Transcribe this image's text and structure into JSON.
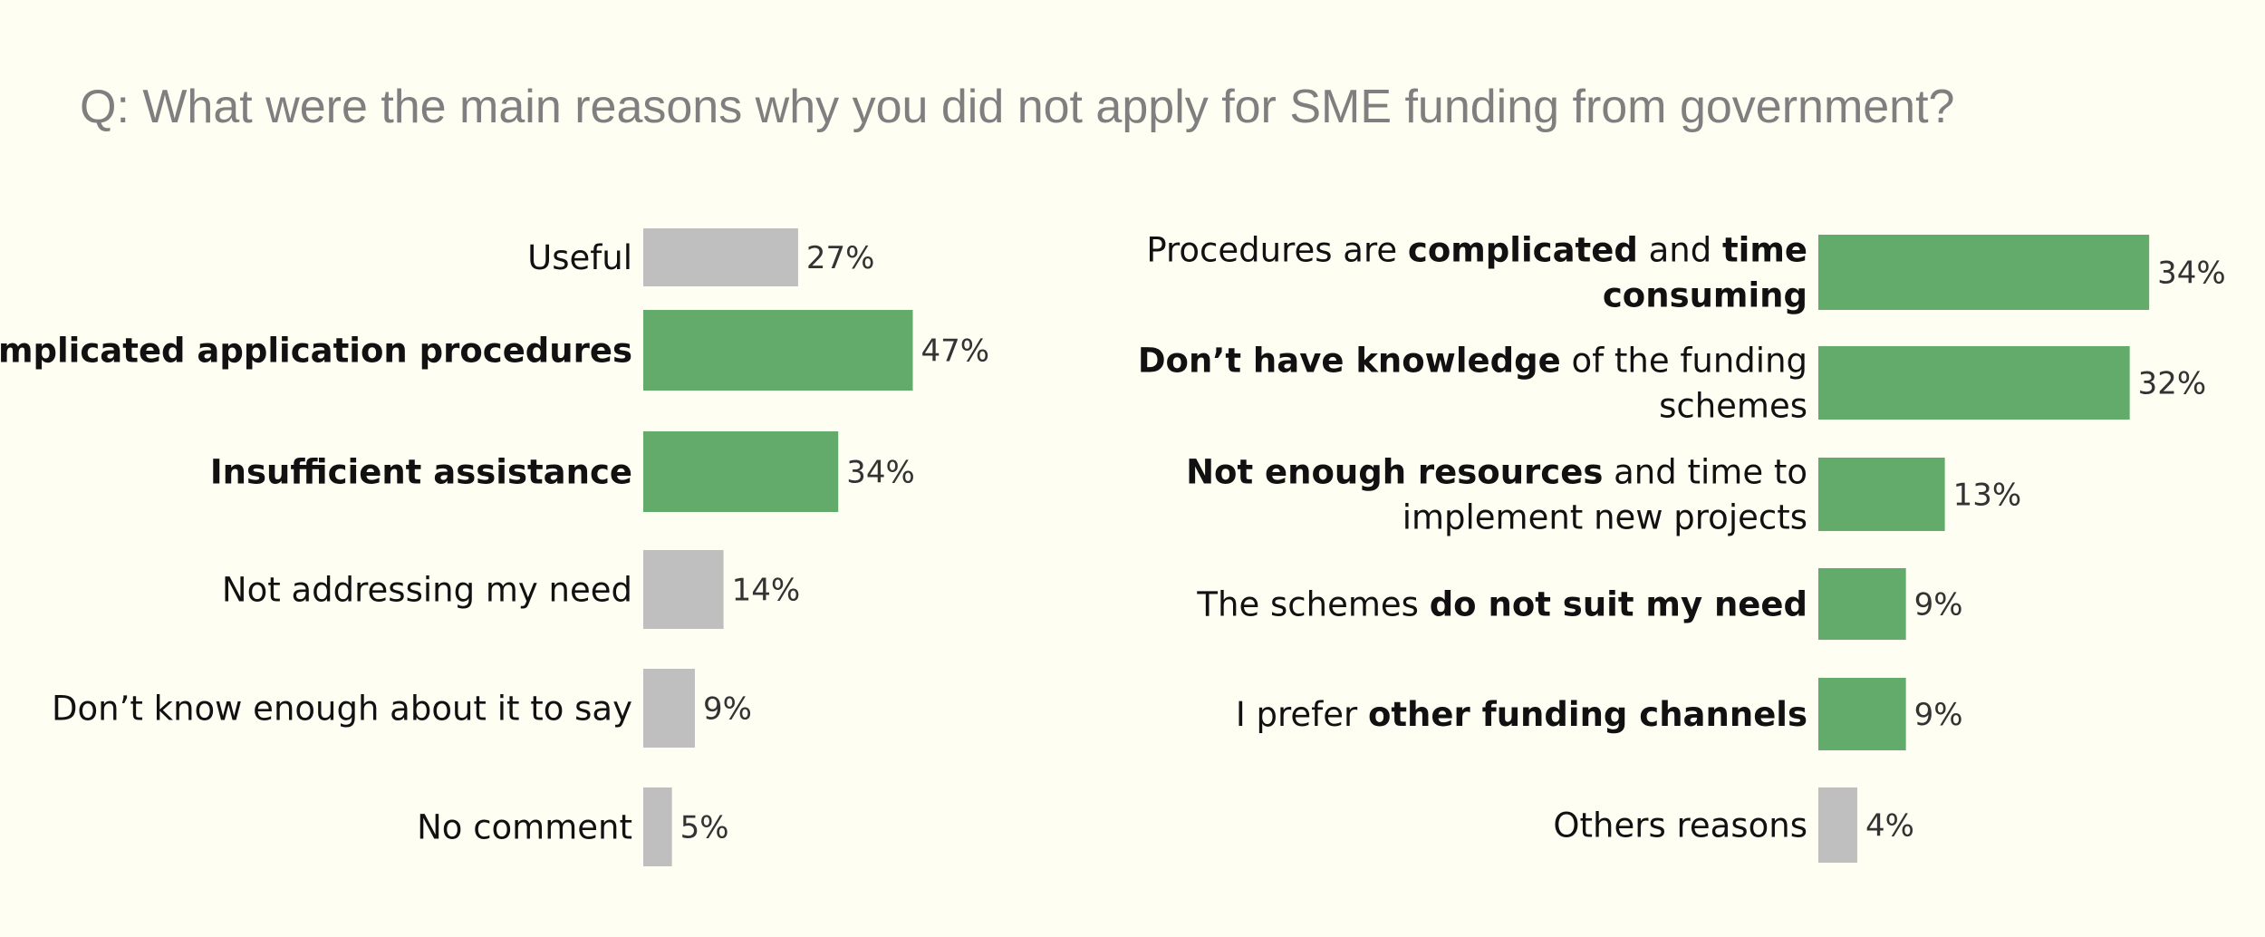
{
  "title": "Q: What were the main reasons why you did not apply for SME funding from government?",
  "colors": {
    "background": "#fffef2",
    "highlight": "#63ab6a",
    "neutral": "#bfbfbf",
    "title": "#7f7f7f"
  },
  "chart_data": [
    {
      "type": "bar",
      "orientation": "horizontal",
      "unit": "%",
      "title": "",
      "xlabel": "",
      "ylabel": "",
      "xlim": [
        0,
        100
      ],
      "grid": false,
      "categories": [
        "Useful",
        "Complicated application procedures",
        "Insufficient assistance",
        "Not addressing my need",
        "Don’t know enough about it to say",
        "No comment"
      ],
      "values": [
        27,
        47,
        34,
        14,
        9,
        5
      ],
      "value_labels": [
        "27%",
        "47%",
        "34%",
        "14%",
        "9%",
        "5%"
      ],
      "highlighted": [
        false,
        true,
        true,
        false,
        false,
        false
      ],
      "label_parts": [
        [
          {
            "text": "Useful",
            "bold": false
          }
        ],
        [
          {
            "text": "Complicated application procedures",
            "bold": true
          }
        ],
        [
          {
            "text": "Insufficient assistance",
            "bold": true
          }
        ],
        [
          {
            "text": "Not addressing my need",
            "bold": false
          }
        ],
        [
          {
            "text": "Don’t know enough about it to say",
            "bold": false
          }
        ],
        [
          {
            "text": "No comment",
            "bold": false
          }
        ]
      ]
    },
    {
      "type": "bar",
      "orientation": "horizontal",
      "unit": "%",
      "title": "",
      "xlabel": "",
      "ylabel": "",
      "xlim": [
        0,
        100
      ],
      "grid": false,
      "categories": [
        "Procedures are complicated and time consuming",
        "Don’t have knowledge of the funding schemes",
        "Not enough resources and time to implement new projects",
        "The schemes do not suit my need",
        "I prefer other funding channels",
        "Others reasons"
      ],
      "values": [
        34,
        32,
        13,
        9,
        9,
        4
      ],
      "value_labels": [
        "34%",
        "32%",
        "13%",
        "9%",
        "9%",
        "4%"
      ],
      "highlighted": [
        true,
        true,
        true,
        true,
        true,
        false
      ],
      "label_parts": [
        [
          [
            {
              "text": "Procedures are ",
              "bold": false
            },
            {
              "text": "complicated",
              "bold": true
            },
            {
              "text": "  and ",
              "bold": false
            },
            {
              "text": "time",
              "bold": true
            }
          ],
          [
            {
              "text": "consuming",
              "bold": true
            }
          ]
        ],
        [
          [
            {
              "text": "Don’t have knowledge",
              "bold": true
            },
            {
              "text": " of the funding",
              "bold": false
            }
          ],
          [
            {
              "text": "schemes",
              "bold": false
            }
          ]
        ],
        [
          [
            {
              "text": "Not enough resources",
              "bold": true
            },
            {
              "text": " and time to",
              "bold": false
            }
          ],
          [
            {
              "text": "implement new projects",
              "bold": false
            }
          ]
        ],
        [
          [
            {
              "text": "The schemes ",
              "bold": false
            },
            {
              "text": "do not suit my need",
              "bold": true
            }
          ]
        ],
        [
          [
            {
              "text": "I prefer ",
              "bold": false
            },
            {
              "text": "other funding channels",
              "bold": true
            }
          ]
        ],
        [
          [
            {
              "text": "Others reasons",
              "bold": false
            }
          ]
        ]
      ]
    }
  ]
}
